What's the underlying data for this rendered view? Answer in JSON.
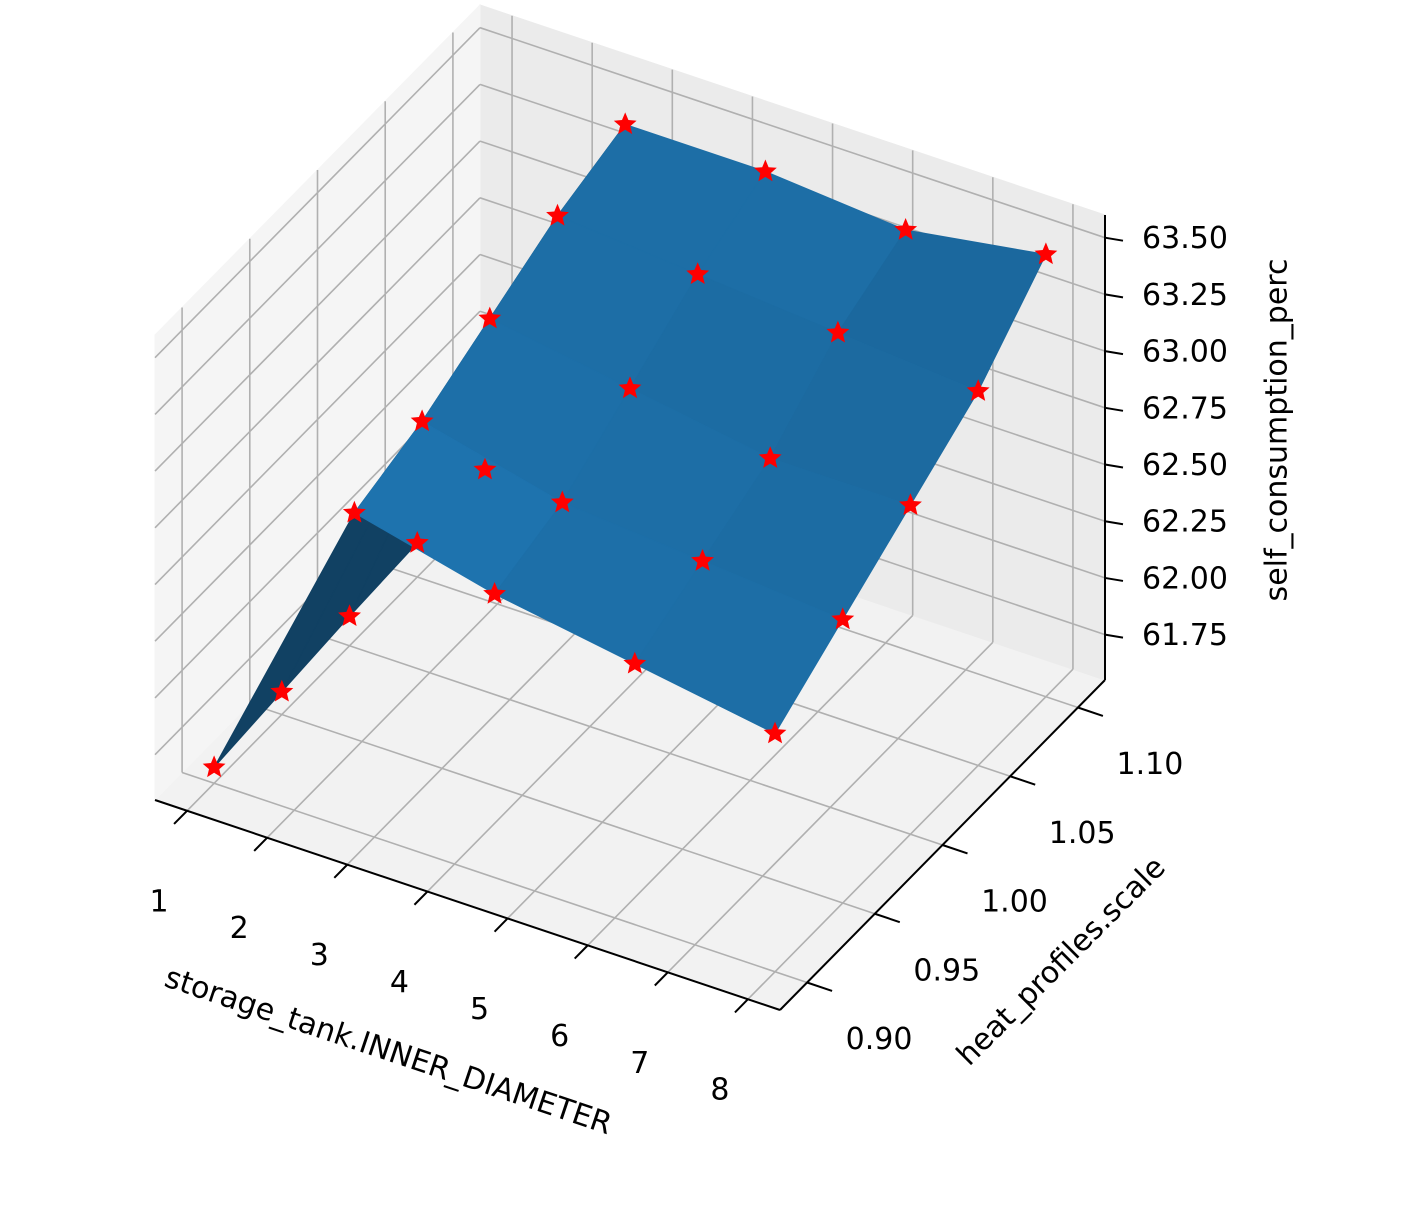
{
  "chart_data": {
    "type": "surface3d",
    "xlabel": "storage_tank.INNER_DIAMETER",
    "ylabel": "heat_profiles.scale",
    "zlabel": "self_consumption_perc",
    "x": [
      1,
      2.75,
      4.5,
      6.25,
      8
    ],
    "y": [
      0.9,
      0.95,
      1.0,
      1.05,
      1.1
    ],
    "z": [
      [
        61.62,
        61.65,
        61.68,
        61.7,
        61.72
      ],
      [
        62.95,
        63.05,
        63.2,
        63.35,
        63.45
      ],
      [
        62.8,
        62.9,
        63.1,
        63.3,
        63.45
      ],
      [
        62.7,
        62.85,
        63.0,
        63.25,
        63.4
      ],
      [
        62.6,
        62.8,
        63.0,
        63.2,
        63.5
      ]
    ],
    "color": "#1f77b4",
    "marker_color": "#ff0000",
    "xlim": [
      0.6,
      8.4
    ],
    "ylim": [
      0.88,
      1.12
    ],
    "zlim": [
      61.55,
      63.6
    ],
    "xticks": [
      1,
      2,
      3,
      4,
      5,
      6,
      7,
      8
    ],
    "yticks": [
      {
        "value": 0.9,
        "label": "0.90"
      },
      0.95,
      {
        "value": 1.0,
        "label": "1.00"
      },
      1.05,
      {
        "value": 1.1,
        "label": "1.10"
      }
    ],
    "zticks": [
      61.75,
      {
        "value": 62.0,
        "label": "62.00"
      },
      62.25,
      {
        "value": 62.5,
        "label": "62.50"
      },
      62.75,
      {
        "value": 63.0,
        "label": "63.00"
      },
      63.25,
      {
        "value": 63.5,
        "label": "63.50"
      }
    ],
    "grid": true
  }
}
